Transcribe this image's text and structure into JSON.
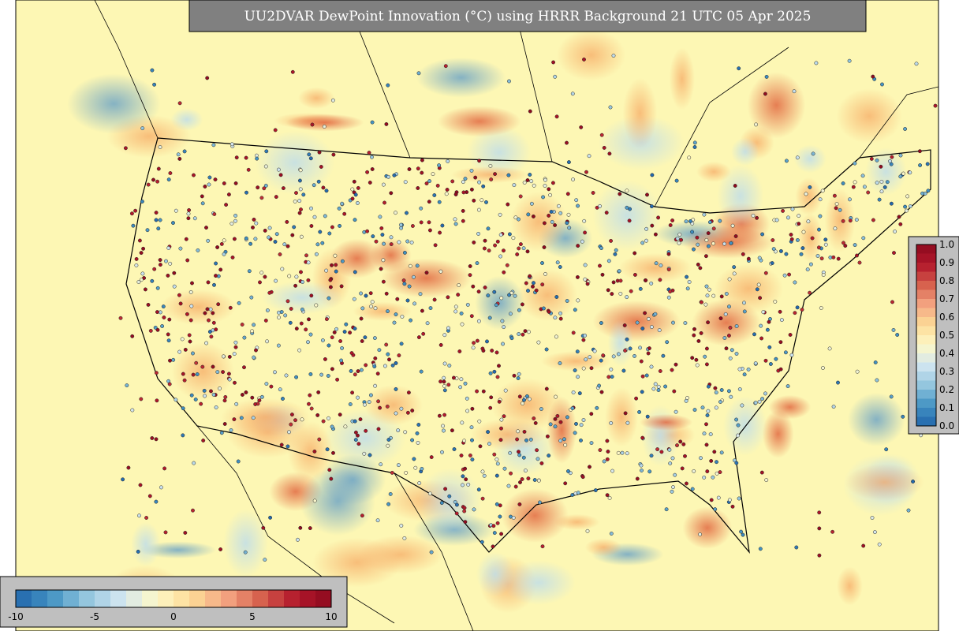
{
  "header": {
    "title": "UU2DVAR DewPoint Innovation (°C) using HRRR Background 21 UTC 05 Apr 2025"
  },
  "innovation_colorbar": {
    "labels": [
      "-10",
      "-5",
      "0",
      "5",
      "10"
    ]
  },
  "fraction_colorbar": {
    "labels": [
      "1.0",
      "0.9",
      "0.8",
      "0.7",
      "0.6",
      "0.5",
      "0.4",
      "0.3",
      "0.2",
      "0.1",
      "0.0"
    ]
  }
}
